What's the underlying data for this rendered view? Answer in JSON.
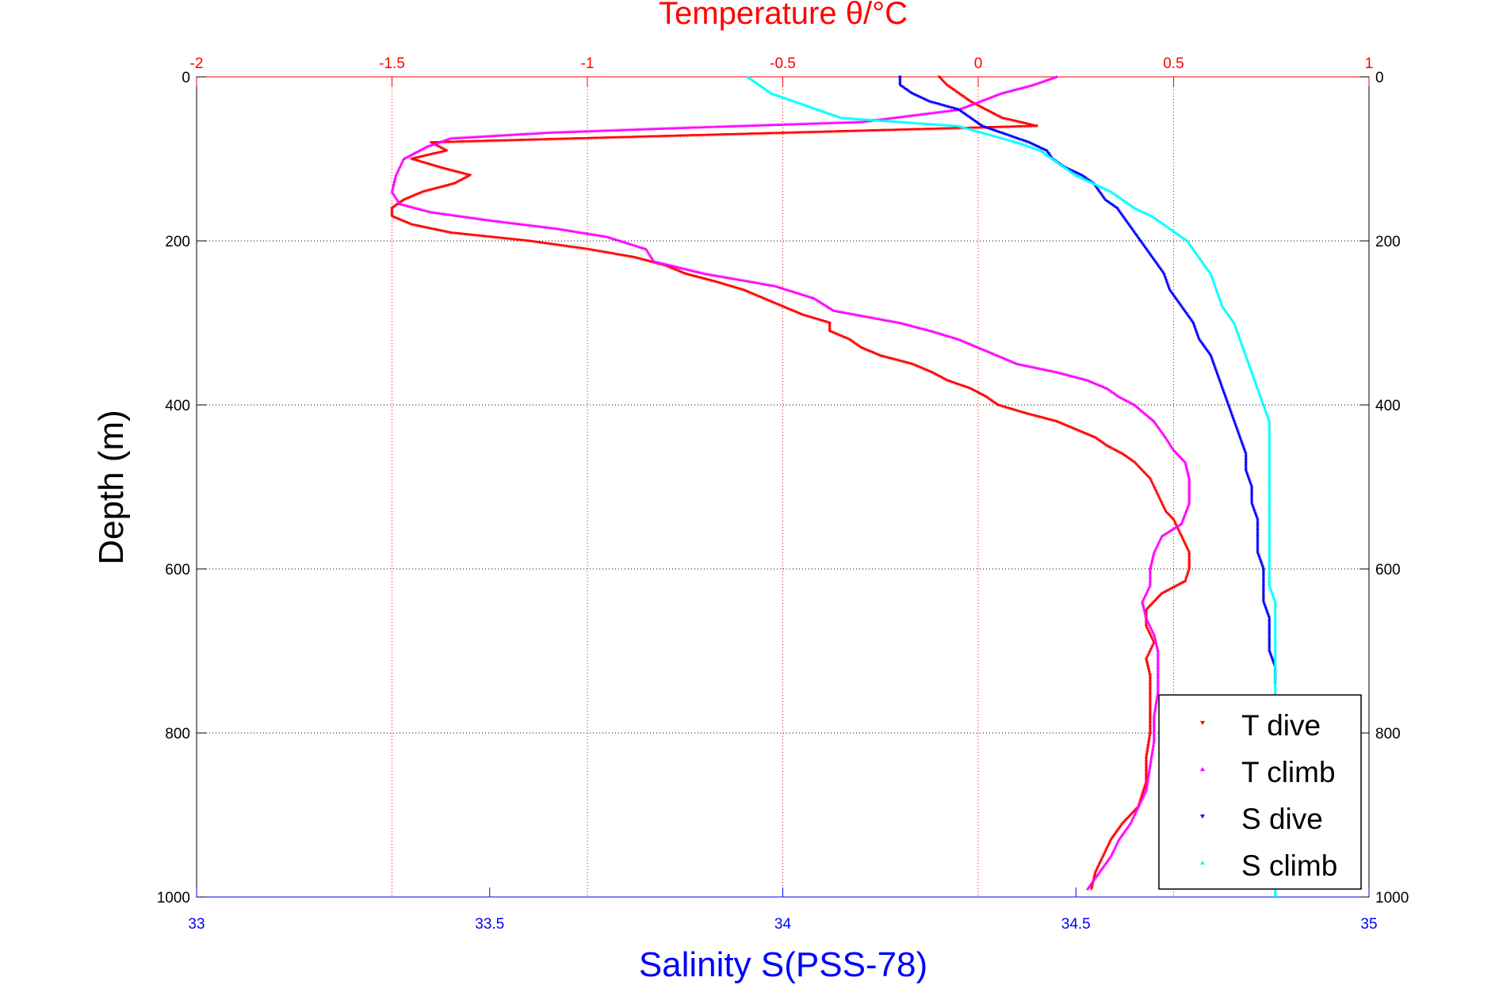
{
  "chart_data": {
    "type": "scatter",
    "title_top": "Temperature θ/°C",
    "xlabel_bottom": "Salinity S(PSS-78)",
    "ylabel": "Depth (m)",
    "y_axis": {
      "range": [
        0,
        1000
      ],
      "reversed": true,
      "ticks": [
        0,
        200,
        400,
        600,
        800,
        1000
      ],
      "tick_labels": [
        "0",
        "200",
        "400",
        "600",
        "800",
        "1000"
      ]
    },
    "x_top_axis": {
      "name": "Temperature",
      "range": [
        -2,
        1
      ],
      "ticks": [
        -2,
        -1.5,
        -1,
        -0.5,
        0,
        0.5,
        1
      ],
      "tick_labels": [
        "-2",
        "-1.5",
        "-1",
        "-0.5",
        "0",
        "0.5",
        "1"
      ]
    },
    "x_bottom_axis": {
      "name": "Salinity",
      "range": [
        33,
        35
      ],
      "ticks": [
        33,
        33.5,
        34,
        34.5,
        35
      ],
      "tick_labels": [
        "33",
        "33.5",
        "34",
        "34.5",
        "35"
      ]
    },
    "grid": true,
    "legend_position": "bottom-right",
    "colors": {
      "temp_axis": "#ff0000",
      "sal_axis": "#0000ff",
      "grid": "#000000"
    },
    "series": [
      {
        "name": "T dive",
        "axis": "temperature",
        "color": "#ff0000",
        "marker": "triangle-down",
        "points": [
          [
            -0.1,
            0
          ],
          [
            -0.08,
            10
          ],
          [
            -0.05,
            20
          ],
          [
            -0.02,
            30
          ],
          [
            0.02,
            40
          ],
          [
            0.06,
            50
          ],
          [
            0.15,
            60
          ],
          [
            -1.4,
            80
          ],
          [
            -1.36,
            90
          ],
          [
            -1.45,
            100
          ],
          [
            -1.38,
            110
          ],
          [
            -1.3,
            120
          ],
          [
            -1.34,
            130
          ],
          [
            -1.42,
            140
          ],
          [
            -1.47,
            150
          ],
          [
            -1.5,
            160
          ],
          [
            -1.5,
            170
          ],
          [
            -1.45,
            180
          ],
          [
            -1.35,
            190
          ],
          [
            -1.15,
            200
          ],
          [
            -1.0,
            210
          ],
          [
            -0.88,
            220
          ],
          [
            -0.8,
            230
          ],
          [
            -0.75,
            240
          ],
          [
            -0.67,
            250
          ],
          [
            -0.6,
            260
          ],
          [
            -0.55,
            270
          ],
          [
            -0.5,
            280
          ],
          [
            -0.45,
            290
          ],
          [
            -0.38,
            300
          ],
          [
            -0.38,
            310
          ],
          [
            -0.33,
            320
          ],
          [
            -0.3,
            330
          ],
          [
            -0.25,
            340
          ],
          [
            -0.17,
            350
          ],
          [
            -0.12,
            360
          ],
          [
            -0.08,
            370
          ],
          [
            -0.02,
            380
          ],
          [
            0.02,
            390
          ],
          [
            0.05,
            400
          ],
          [
            0.12,
            410
          ],
          [
            0.2,
            420
          ],
          [
            0.25,
            430
          ],
          [
            0.3,
            440
          ],
          [
            0.33,
            450
          ],
          [
            0.37,
            460
          ],
          [
            0.4,
            470
          ],
          [
            0.42,
            480
          ],
          [
            0.44,
            490
          ],
          [
            0.45,
            500
          ],
          [
            0.46,
            510
          ],
          [
            0.47,
            520
          ],
          [
            0.48,
            530
          ],
          [
            0.5,
            540
          ],
          [
            0.52,
            560
          ],
          [
            0.54,
            580
          ],
          [
            0.54,
            600
          ],
          [
            0.53,
            615
          ],
          [
            0.47,
            630
          ],
          [
            0.43,
            650
          ],
          [
            0.43,
            670
          ],
          [
            0.45,
            690
          ],
          [
            0.43,
            710
          ],
          [
            0.44,
            730
          ],
          [
            0.44,
            750
          ],
          [
            0.44,
            770
          ],
          [
            0.44,
            800
          ],
          [
            0.43,
            830
          ],
          [
            0.43,
            860
          ],
          [
            0.41,
            890
          ],
          [
            0.37,
            910
          ],
          [
            0.34,
            930
          ],
          [
            0.32,
            950
          ],
          [
            0.3,
            970
          ],
          [
            0.29,
            990
          ]
        ]
      },
      {
        "name": "T climb",
        "axis": "temperature",
        "color": "#ff00ff",
        "marker": "triangle-up",
        "points": [
          [
            0.2,
            0
          ],
          [
            0.14,
            10
          ],
          [
            0.06,
            20
          ],
          [
            -0.05,
            40
          ],
          [
            -0.3,
            55
          ],
          [
            -0.75,
            62
          ],
          [
            -1.1,
            68
          ],
          [
            -1.35,
            75
          ],
          [
            -1.41,
            85
          ],
          [
            -1.47,
            100
          ],
          [
            -1.49,
            120
          ],
          [
            -1.5,
            140
          ],
          [
            -1.48,
            155
          ],
          [
            -1.4,
            165
          ],
          [
            -1.25,
            175
          ],
          [
            -1.08,
            185
          ],
          [
            -0.95,
            195
          ],
          [
            -0.85,
            210
          ],
          [
            -0.83,
            225
          ],
          [
            -0.7,
            240
          ],
          [
            -0.52,
            255
          ],
          [
            -0.42,
            270
          ],
          [
            -0.37,
            285
          ],
          [
            -0.2,
            300
          ],
          [
            -0.12,
            310
          ],
          [
            -0.05,
            320
          ],
          [
            0.0,
            330
          ],
          [
            0.05,
            340
          ],
          [
            0.1,
            350
          ],
          [
            0.2,
            360
          ],
          [
            0.28,
            370
          ],
          [
            0.33,
            380
          ],
          [
            0.36,
            390
          ],
          [
            0.4,
            400
          ],
          [
            0.45,
            420
          ],
          [
            0.48,
            440
          ],
          [
            0.5,
            455
          ],
          [
            0.53,
            470
          ],
          [
            0.54,
            490
          ],
          [
            0.54,
            520
          ],
          [
            0.52,
            545
          ],
          [
            0.47,
            560
          ],
          [
            0.45,
            580
          ],
          [
            0.44,
            600
          ],
          [
            0.44,
            620
          ],
          [
            0.42,
            640
          ],
          [
            0.43,
            660
          ],
          [
            0.45,
            680
          ],
          [
            0.46,
            700
          ],
          [
            0.46,
            720
          ],
          [
            0.46,
            750
          ],
          [
            0.45,
            780
          ],
          [
            0.45,
            810
          ],
          [
            0.44,
            840
          ],
          [
            0.43,
            870
          ],
          [
            0.41,
            890
          ],
          [
            0.39,
            910
          ],
          [
            0.36,
            930
          ],
          [
            0.34,
            950
          ],
          [
            0.31,
            970
          ],
          [
            0.28,
            990
          ]
        ]
      },
      {
        "name": "S dive",
        "axis": "salinity",
        "color": "#0000ff",
        "marker": "triangle-down",
        "points": [
          [
            34.2,
            0
          ],
          [
            34.2,
            10
          ],
          [
            34.22,
            20
          ],
          [
            34.25,
            30
          ],
          [
            34.3,
            40
          ],
          [
            34.32,
            50
          ],
          [
            34.34,
            60
          ],
          [
            34.38,
            70
          ],
          [
            34.42,
            80
          ],
          [
            34.45,
            90
          ],
          [
            34.46,
            100
          ],
          [
            34.48,
            110
          ],
          [
            34.51,
            120
          ],
          [
            34.53,
            130
          ],
          [
            34.54,
            140
          ],
          [
            34.55,
            150
          ],
          [
            34.57,
            160
          ],
          [
            34.58,
            170
          ],
          [
            34.59,
            180
          ],
          [
            34.6,
            190
          ],
          [
            34.61,
            200
          ],
          [
            34.63,
            220
          ],
          [
            34.65,
            240
          ],
          [
            34.66,
            260
          ],
          [
            34.68,
            280
          ],
          [
            34.7,
            300
          ],
          [
            34.71,
            320
          ],
          [
            34.73,
            340
          ],
          [
            34.74,
            360
          ],
          [
            34.75,
            380
          ],
          [
            34.76,
            400
          ],
          [
            34.77,
            420
          ],
          [
            34.78,
            440
          ],
          [
            34.79,
            460
          ],
          [
            34.79,
            480
          ],
          [
            34.8,
            500
          ],
          [
            34.8,
            520
          ],
          [
            34.81,
            540
          ],
          [
            34.81,
            560
          ],
          [
            34.81,
            580
          ],
          [
            34.82,
            600
          ],
          [
            34.82,
            620
          ],
          [
            34.82,
            640
          ],
          [
            34.83,
            660
          ],
          [
            34.83,
            680
          ],
          [
            34.83,
            700
          ],
          [
            34.84,
            720
          ],
          [
            34.84,
            740
          ]
        ]
      },
      {
        "name": "S climb",
        "axis": "salinity",
        "color": "#00ffff",
        "marker": "triangle-up",
        "points": [
          [
            33.94,
            0
          ],
          [
            33.96,
            10
          ],
          [
            33.98,
            20
          ],
          [
            34.02,
            30
          ],
          [
            34.06,
            40
          ],
          [
            34.1,
            50
          ],
          [
            34.2,
            55
          ],
          [
            34.3,
            60
          ],
          [
            34.35,
            70
          ],
          [
            34.4,
            80
          ],
          [
            34.44,
            90
          ],
          [
            34.46,
            100
          ],
          [
            34.48,
            110
          ],
          [
            34.5,
            120
          ],
          [
            34.53,
            130
          ],
          [
            34.56,
            140
          ],
          [
            34.58,
            150
          ],
          [
            34.6,
            160
          ],
          [
            34.63,
            170
          ],
          [
            34.65,
            180
          ],
          [
            34.67,
            190
          ],
          [
            34.69,
            200
          ],
          [
            34.71,
            220
          ],
          [
            34.73,
            240
          ],
          [
            34.74,
            260
          ],
          [
            34.75,
            280
          ],
          [
            34.77,
            300
          ],
          [
            34.78,
            320
          ],
          [
            34.79,
            340
          ],
          [
            34.8,
            360
          ],
          [
            34.81,
            380
          ],
          [
            34.82,
            400
          ],
          [
            34.83,
            420
          ],
          [
            34.83,
            440
          ],
          [
            34.83,
            460
          ],
          [
            34.83,
            480
          ],
          [
            34.83,
            500
          ],
          [
            34.83,
            520
          ],
          [
            34.83,
            540
          ],
          [
            34.83,
            560
          ],
          [
            34.83,
            580
          ],
          [
            34.83,
            600
          ],
          [
            34.83,
            620
          ],
          [
            34.84,
            640
          ],
          [
            34.84,
            660
          ],
          [
            34.84,
            680
          ],
          [
            34.84,
            700
          ],
          [
            34.84,
            720
          ],
          [
            34.84,
            740
          ],
          [
            34.84,
            760
          ],
          [
            34.84,
            800
          ],
          [
            34.84,
            850
          ],
          [
            34.84,
            900
          ],
          [
            34.84,
            950
          ],
          [
            34.84,
            1000
          ]
        ]
      }
    ]
  }
}
